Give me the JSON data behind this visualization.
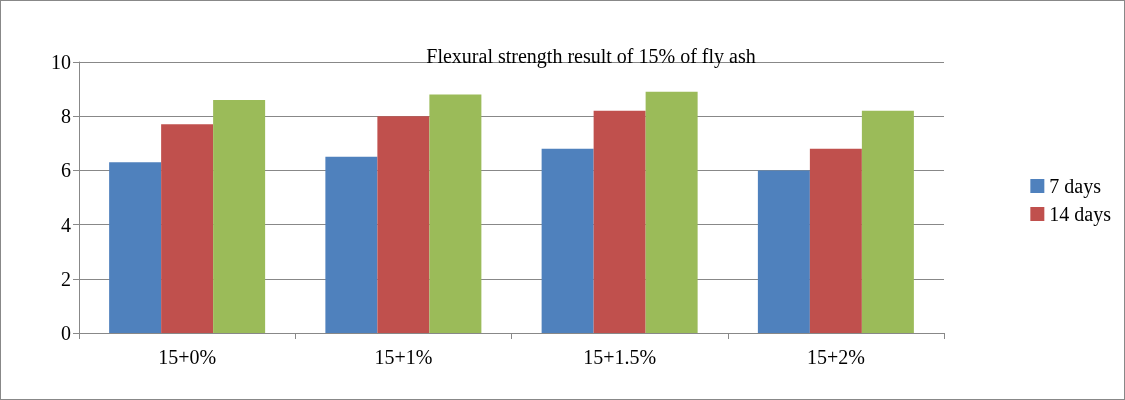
{
  "chart_data": {
    "type": "bar",
    "title": "Flexural strength result of 15% of fly ash",
    "categories": [
      "15+0%",
      "15+1%",
      "15+1.5%",
      "15+2%"
    ],
    "series": [
      {
        "name": "7 days",
        "color": "#4f81bd",
        "values": [
          6.3,
          6.5,
          6.8,
          6.0
        ]
      },
      {
        "name": "14 days",
        "color": "#c0504d",
        "values": [
          7.7,
          8.0,
          8.2,
          6.8
        ]
      },
      {
        "color": "#9bbb59",
        "values": [
          8.6,
          8.8,
          8.9,
          8.2
        ]
      }
    ],
    "ylim": [
      0,
      10
    ],
    "yticks": [
      0,
      2,
      4,
      6,
      8,
      10
    ],
    "grid": "y",
    "legend": "right"
  }
}
